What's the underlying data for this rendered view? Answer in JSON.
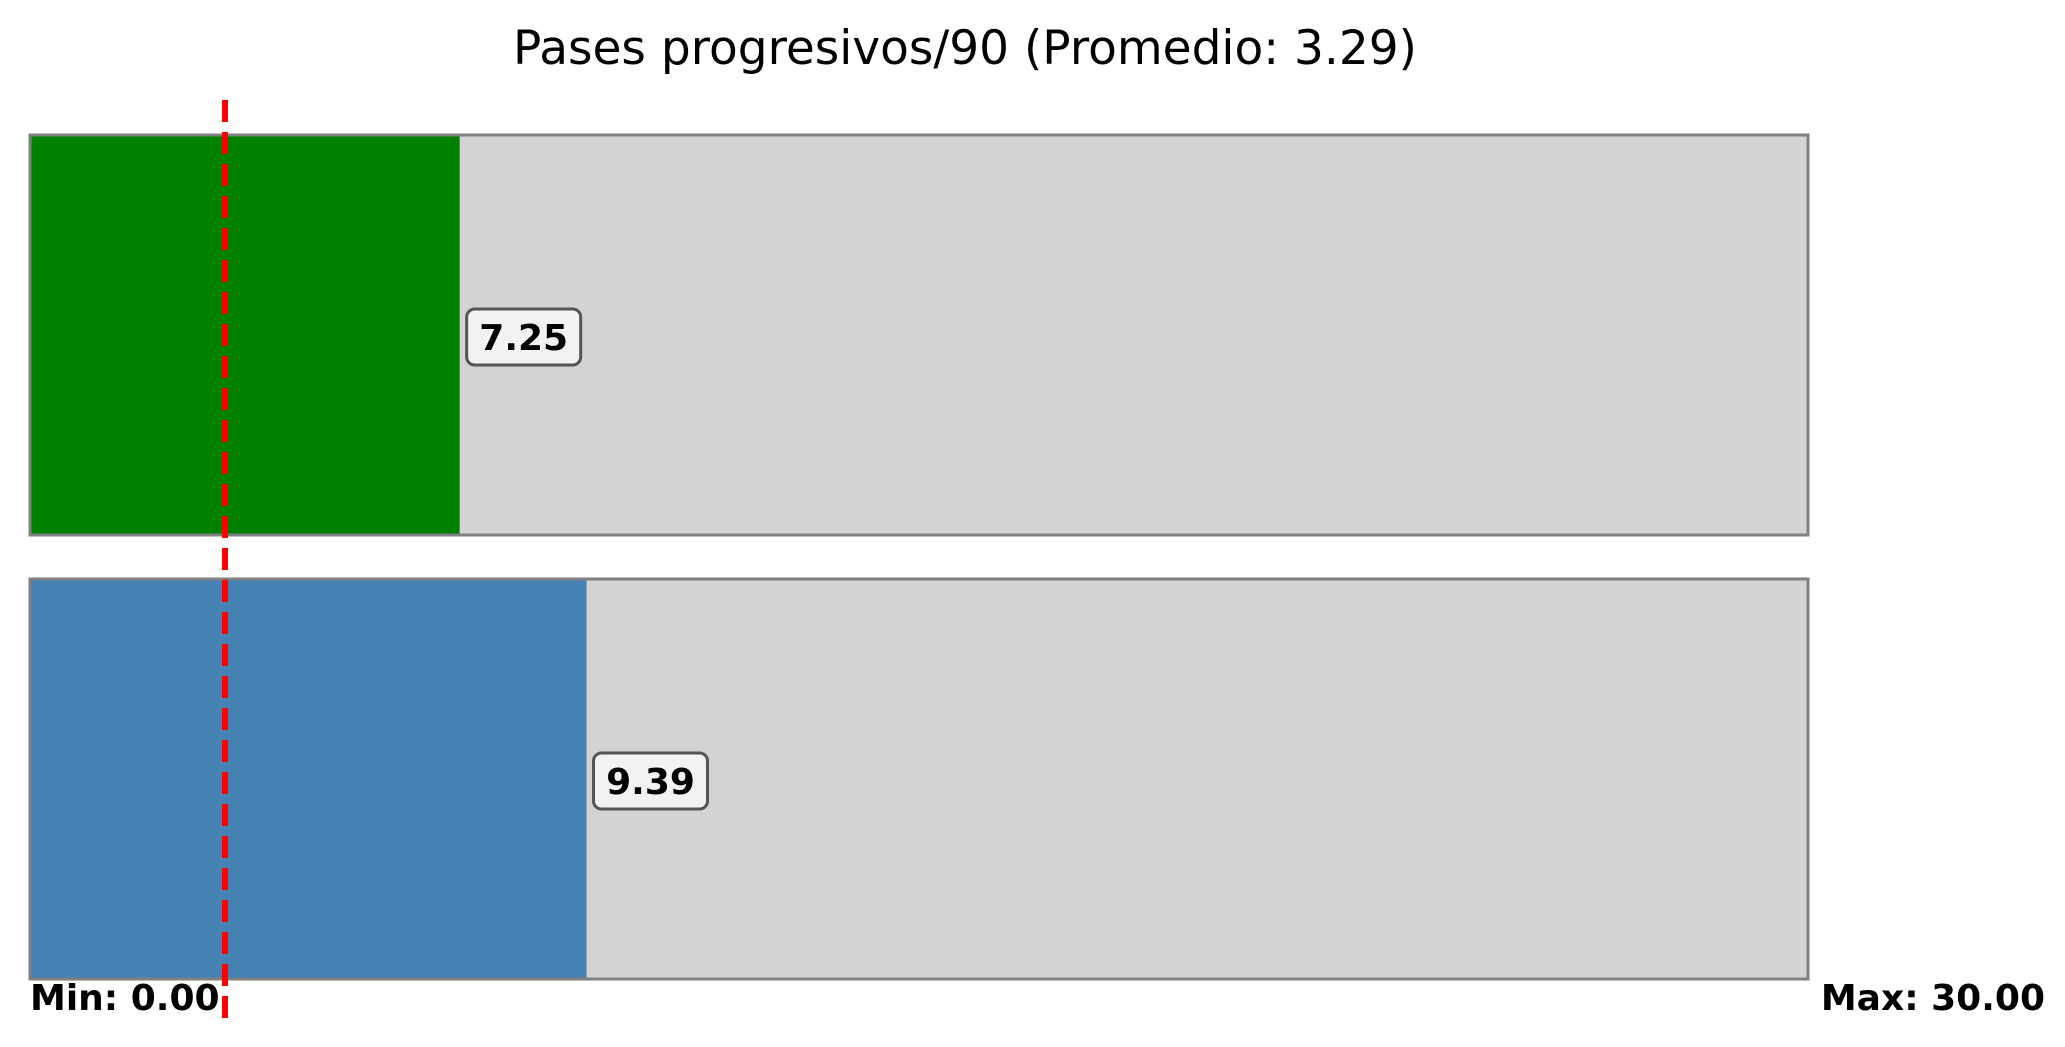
{
  "chart_data": {
    "type": "bar",
    "orientation": "horizontal",
    "title": "Pases progresivos/90 (Promedio: 3.29)",
    "xlim": [
      0,
      30
    ],
    "min_label": "Min: 0.00",
    "max_label": "Max: 30.00",
    "reference_line": {
      "value": 3.29,
      "color": "#ff0000",
      "style": "dashed"
    },
    "track_color": "#d3d3d3",
    "track_border_color": "#808080",
    "series": [
      {
        "value": 7.25,
        "label": "7.25",
        "color": "#008000"
      },
      {
        "value": 9.39,
        "label": "9.39",
        "color": "#4682b4"
      }
    ]
  }
}
